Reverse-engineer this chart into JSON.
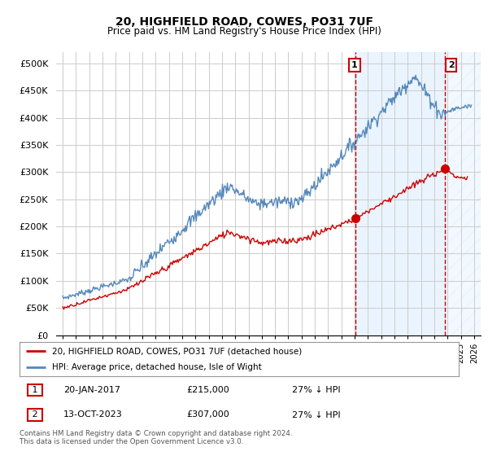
{
  "title": "20, HIGHFIELD ROAD, COWES, PO31 7UF",
  "subtitle": "Price paid vs. HM Land Registry's House Price Index (HPI)",
  "legend_label_red": "20, HIGHFIELD ROAD, COWES, PO31 7UF (detached house)",
  "legend_label_blue": "HPI: Average price, detached house, Isle of Wight",
  "annotation1_label": "1",
  "annotation1_date": "20-JAN-2017",
  "annotation1_price": "£215,000",
  "annotation1_hpi": "27% ↓ HPI",
  "annotation1_year": 2017.05,
  "annotation1_value": 215000,
  "annotation2_label": "2",
  "annotation2_date": "13-OCT-2023",
  "annotation2_price": "£307,000",
  "annotation2_hpi": "27% ↓ HPI",
  "annotation2_year": 2023.78,
  "annotation2_value": 307000,
  "footer": "Contains HM Land Registry data © Crown copyright and database right 2024.\nThis data is licensed under the Open Government Licence v3.0.",
  "ylim": [
    0,
    520000
  ],
  "xlim_start": 1994.5,
  "xlim_end": 2026.5,
  "yticks": [
    0,
    50000,
    100000,
    150000,
    200000,
    250000,
    300000,
    350000,
    400000,
    450000,
    500000
  ],
  "ytick_labels": [
    "£0",
    "£50K",
    "£100K",
    "£150K",
    "£200K",
    "£250K",
    "£300K",
    "£350K",
    "£400K",
    "£450K",
    "£500K"
  ],
  "color_red": "#cc0000",
  "color_blue": "#5588bb",
  "color_grid": "#cccccc",
  "color_annotation_box": "#cc0000",
  "color_fill": "#ddeeff",
  "background_color": "#ffffff"
}
